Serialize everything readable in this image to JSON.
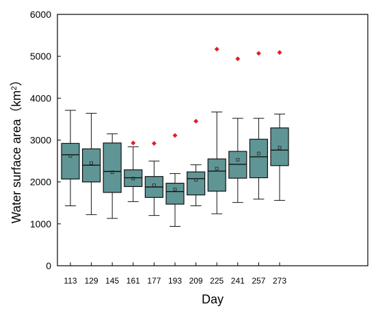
{
  "chart_data": {
    "type": "box",
    "xlabel": "Day",
    "ylabel_main": "Water surface area",
    "ylabel_unit_open": "（km",
    "ylabel_unit_sup": "2",
    "ylabel_unit_close": "）",
    "ylim": [
      0,
      6000
    ],
    "yticks": [
      0,
      1000,
      2000,
      3000,
      4000,
      5000,
      6000
    ],
    "categories": [
      "113",
      "129",
      "145",
      "161",
      "177",
      "193",
      "209",
      "225",
      "241",
      "257",
      "273"
    ],
    "boxes": [
      {
        "min": 1430,
        "q1": 2070,
        "median": 2650,
        "q3": 2920,
        "max": 3710,
        "mean": 2620,
        "outliers": []
      },
      {
        "min": 1220,
        "q1": 2000,
        "median": 2400,
        "q3": 2790,
        "max": 3640,
        "mean": 2450,
        "outliers": []
      },
      {
        "min": 1130,
        "q1": 1750,
        "median": 2250,
        "q3": 2930,
        "max": 3150,
        "mean": 2230,
        "outliers": []
      },
      {
        "min": 1530,
        "q1": 1890,
        "median": 2100,
        "q3": 2290,
        "max": 2840,
        "mean": 2080,
        "outliers": [
          2930
        ]
      },
      {
        "min": 1200,
        "q1": 1630,
        "median": 1880,
        "q3": 2130,
        "max": 2500,
        "mean": 1920,
        "outliers": [
          2920
        ]
      },
      {
        "min": 940,
        "q1": 1470,
        "median": 1770,
        "q3": 1970,
        "max": 2200,
        "mean": 1820,
        "outliers": [
          3110
        ]
      },
      {
        "min": 1430,
        "q1": 1690,
        "median": 2080,
        "q3": 2240,
        "max": 2410,
        "mean": 2050,
        "outliers": [
          3450
        ]
      },
      {
        "min": 1240,
        "q1": 1780,
        "median": 2260,
        "q3": 2550,
        "max": 3670,
        "mean": 2320,
        "outliers": [
          5170
        ]
      },
      {
        "min": 1510,
        "q1": 2090,
        "median": 2420,
        "q3": 2730,
        "max": 3520,
        "mean": 2530,
        "outliers": [
          4940
        ]
      },
      {
        "min": 1590,
        "q1": 2100,
        "median": 2600,
        "q3": 3020,
        "max": 3520,
        "mean": 2680,
        "outliers": [
          5070
        ]
      },
      {
        "min": 1560,
        "q1": 2390,
        "median": 2760,
        "q3": 3290,
        "max": 3620,
        "mean": 2820,
        "outliers": [
          5090
        ]
      }
    ],
    "colors": {
      "box_fill": "#5f9595",
      "box_stroke": "#111111",
      "outlier": "#e02020",
      "axis": "#000000"
    }
  }
}
